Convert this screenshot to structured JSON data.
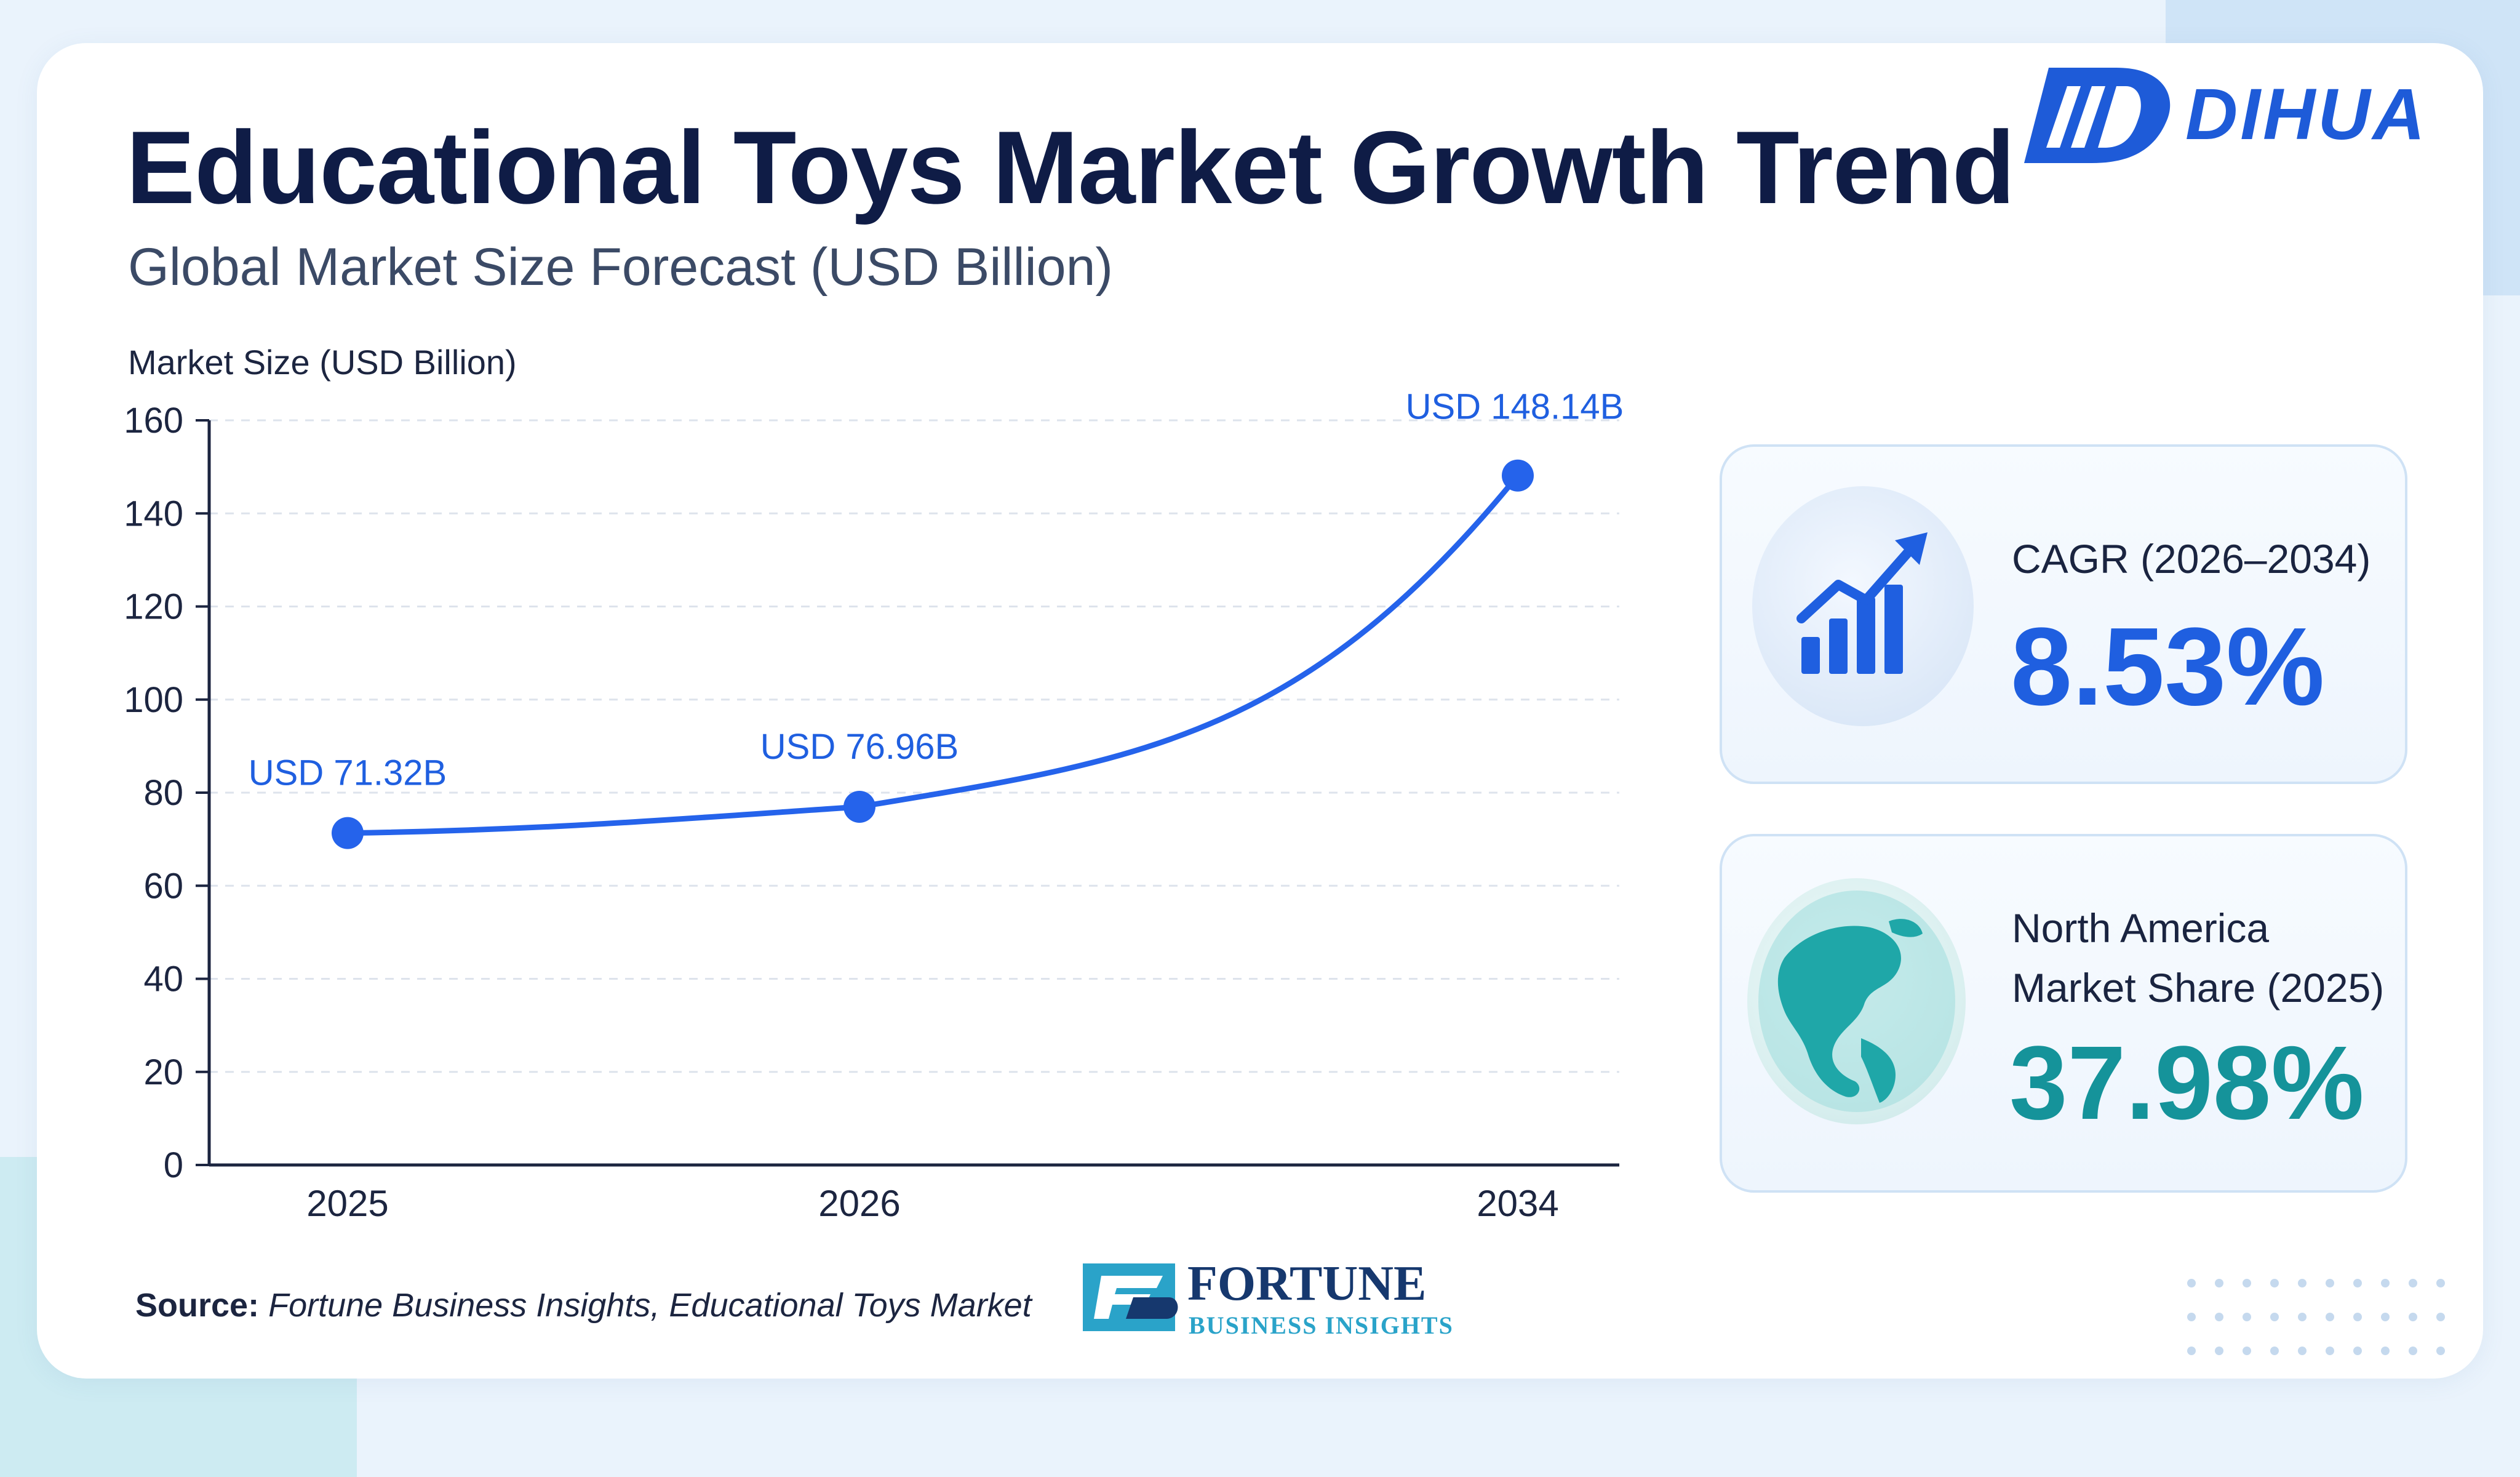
{
  "header": {
    "title": "Educational Toys Market Growth Trend",
    "subtitle": "Global Market Size Forecast (USD Billion)",
    "brand": "DIHUA"
  },
  "chart_data": {
    "type": "line",
    "ylabel": "Market Size (USD Billion)",
    "xlabel": "",
    "categories": [
      "2025",
      "2026",
      "2034"
    ],
    "values": [
      71.32,
      76.96,
      148.14
    ],
    "data_labels": [
      "USD 71.32B",
      "USD 76.96B",
      "USD 148.14B"
    ],
    "ylim": [
      0,
      160
    ],
    "yticks": [
      0,
      20,
      40,
      60,
      80,
      100,
      120,
      140,
      160
    ],
    "grid": "horizontal dashed",
    "legend": "none",
    "line_color": "#2563eb"
  },
  "stats": {
    "cagr": {
      "label": "CAGR (2026–2034)",
      "value": "8.53%",
      "icon": "bar-chart-growth-icon",
      "color": "#1f5fe0"
    },
    "north_america": {
      "label_line1": "North America",
      "label_line2": "Market Share (2025)",
      "value": "37.98%",
      "icon": "globe-north-america-icon",
      "color": "#15939a"
    }
  },
  "footer": {
    "source_key": "Source:",
    "source_text": "Fortune Business Insights, Educational Toys Market",
    "publisher_name": "FORTUNE",
    "publisher_sub": "BUSINESS INSIGHTS"
  }
}
